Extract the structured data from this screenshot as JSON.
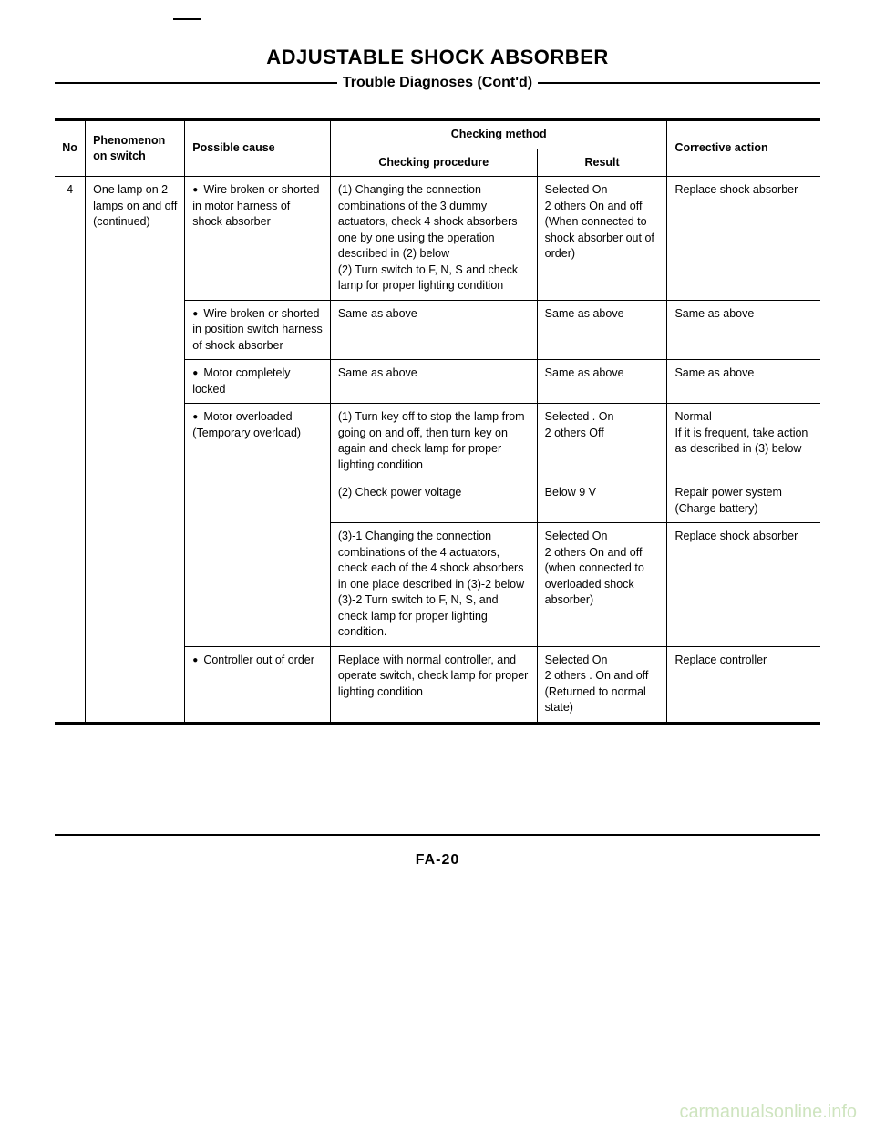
{
  "title": "ADJUSTABLE SHOCK ABSORBER",
  "subtitle": "Trouble Diagnoses (Cont'd)",
  "header": {
    "no": "No",
    "phenomenon": "Phenomenon on switch",
    "possible_cause": "Possible cause",
    "checking_method": "Checking method",
    "checking_procedure": "Checking procedure",
    "result": "Result",
    "corrective": "Corrective action"
  },
  "row_no": "4",
  "phenomenon": "One lamp on 2 lamps on and off (continued)",
  "rows": [
    {
      "cause": "Wire broken or shorted in motor harness of shock absorber",
      "procedure": "(1) Changing the connection combinations of the 3 dummy actuators, check 4 shock absorbers one by one using the operation described in (2) below\n(2) Turn switch to F, N, S and check lamp for proper lighting condition",
      "result": "Selected   On\n2 others   On and off\n(When connected to shock absorber out of order)",
      "corrective": "Replace shock absorber"
    },
    {
      "cause": "Wire broken or shorted in position switch harness of shock absorber",
      "procedure": "Same as above",
      "result": "Same as above",
      "corrective": "Same as above"
    },
    {
      "cause": "Motor completely locked",
      "procedure": "Same as above",
      "result": "Same as above",
      "corrective": "Same as above"
    },
    {
      "cause": "Motor overloaded (Temporary overload)",
      "procedure": "(1) Turn key off to stop the lamp from going on and off, then turn key on again and check lamp for proper lighting condition",
      "result": "Selected  . On\n2 others   Off",
      "corrective": "Normal\nIf it is frequent, take action as described in (3) below"
    },
    {
      "cause": "",
      "procedure": "(2) Check power voltage",
      "result": "Below 9 V",
      "corrective": "Repair power system (Charge battery)"
    },
    {
      "cause": "",
      "procedure": "(3)-1 Changing the connection combinations of the 4 actuators, check each of the 4 shock absorbers in one place described in (3)-2 below\n(3)-2 Turn switch to F, N, S, and check lamp for proper lighting condition.",
      "result": "Selected   On\n2 others   On and off\n(when connected to overloaded shock absorber)",
      "corrective": "Replace shock absorber"
    },
    {
      "cause": "Controller out of order",
      "procedure": "Replace with normal controller, and operate switch, check lamp for proper lighting condition",
      "result": "Selected   On\n2 others  . On and off\n(Returned to normal state)",
      "corrective": "Replace controller"
    }
  ],
  "page_no": "FA-20",
  "watermark": "carmanualsonline.info"
}
